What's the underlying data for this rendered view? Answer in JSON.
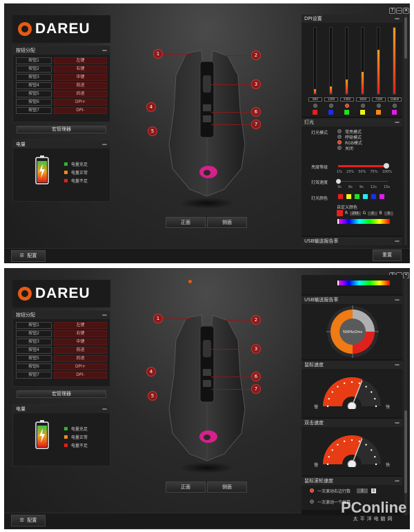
{
  "window_controls": {
    "help": "?",
    "minimize": "—",
    "close": "✕"
  },
  "logo": {
    "text": "DAREU",
    "color": "#e85a14"
  },
  "button_assign": {
    "title": "按钮分配",
    "collapse": "—",
    "rows": [
      {
        "button": "按钮1",
        "action": "左键"
      },
      {
        "button": "按钮2",
        "action": "右键"
      },
      {
        "button": "按钮3",
        "action": "中键"
      },
      {
        "button": "按钮4",
        "action": "前进"
      },
      {
        "button": "按钮5",
        "action": "后退"
      },
      {
        "button": "按钮6",
        "action": "DPI+"
      },
      {
        "button": "按钮7",
        "action": "DPI-"
      }
    ]
  },
  "macro_manager": "宏管理器",
  "battery": {
    "title": "电量",
    "collapse": "—",
    "legend": [
      {
        "label": "电量充足",
        "color": "#2db52d"
      },
      {
        "label": "电量正常",
        "color": "#f08a1c"
      },
      {
        "label": "电量不足",
        "color": "#e0201c"
      }
    ]
  },
  "mouse_view": {
    "callouts": [
      "1",
      "2",
      "3",
      "4",
      "5",
      "6",
      "7"
    ],
    "logo_color": "#e0208c",
    "front": "正面",
    "side": "侧面"
  },
  "footer": {
    "config": "配置",
    "reset": "重置"
  },
  "dpi": {
    "title": "DPI设置",
    "collapse": "—",
    "selected_index": 2,
    "levels": [
      {
        "value": "800",
        "fill": 0.074,
        "color": "#e8201c"
      },
      {
        "value": "1200",
        "fill": 0.111,
        "color": "#1c2ee8"
      },
      {
        "value": "2400",
        "fill": 0.222,
        "color": "#22e01c"
      },
      {
        "value": "3600",
        "fill": 0.333,
        "color": "#f0f01c"
      },
      {
        "value": "7200",
        "fill": 0.667,
        "color": "#f08a1c"
      },
      {
        "value": "10800",
        "fill": 1.0,
        "color": "#e01ce8"
      }
    ]
  },
  "lighting": {
    "title": "灯光",
    "collapse": "—",
    "mode_label": "灯光模式",
    "modes": [
      "常亮模式",
      "呼吸模式",
      "RGB模式",
      "关闭"
    ],
    "selected_mode": 2,
    "brightness_label": "亮度等级",
    "brightness_ticks": [
      "1%",
      "25%",
      "50%",
      "75%",
      "100%"
    ],
    "brightness": 1.0,
    "speed_label": "灯效速度",
    "speed_ticks": [
      "3s",
      "6s",
      "9s",
      "12s",
      "15s"
    ],
    "speed": 0,
    "color_label": "灯光颜色",
    "swatches": [
      "#e8201c",
      "#f0f01c",
      "#22e01c",
      "#1cf0f0",
      "#1c2ee8",
      "#e01ce8"
    ],
    "custom_label": "自定义颜色",
    "custom_color": "#e8201c",
    "r_label": "R",
    "r": "255",
    "g_label": "G",
    "g": "0",
    "b_label": "B",
    "b": "0"
  },
  "usb": {
    "title": "USB输送报告率",
    "collapse": "—",
    "center": "500Hz/2ms"
  },
  "mouse_speed": {
    "title": "鼠标速度",
    "collapse": "—",
    "slow": "慢",
    "fast": "快",
    "value": 0.62
  },
  "double_click": {
    "title": "双击速度",
    "collapse": "—",
    "slow": "慢",
    "fast": "快",
    "value": 0.62
  },
  "scroll_speed": {
    "title": "鼠标滚轮速度",
    "collapse": "—",
    "options": [
      "一次滚动右边行数",
      "一次滚动一个屏幕"
    ],
    "selected": 0,
    "lines": "3"
  },
  "watermark": {
    "brand": "PConline",
    "sub": "太平洋电脑网"
  }
}
